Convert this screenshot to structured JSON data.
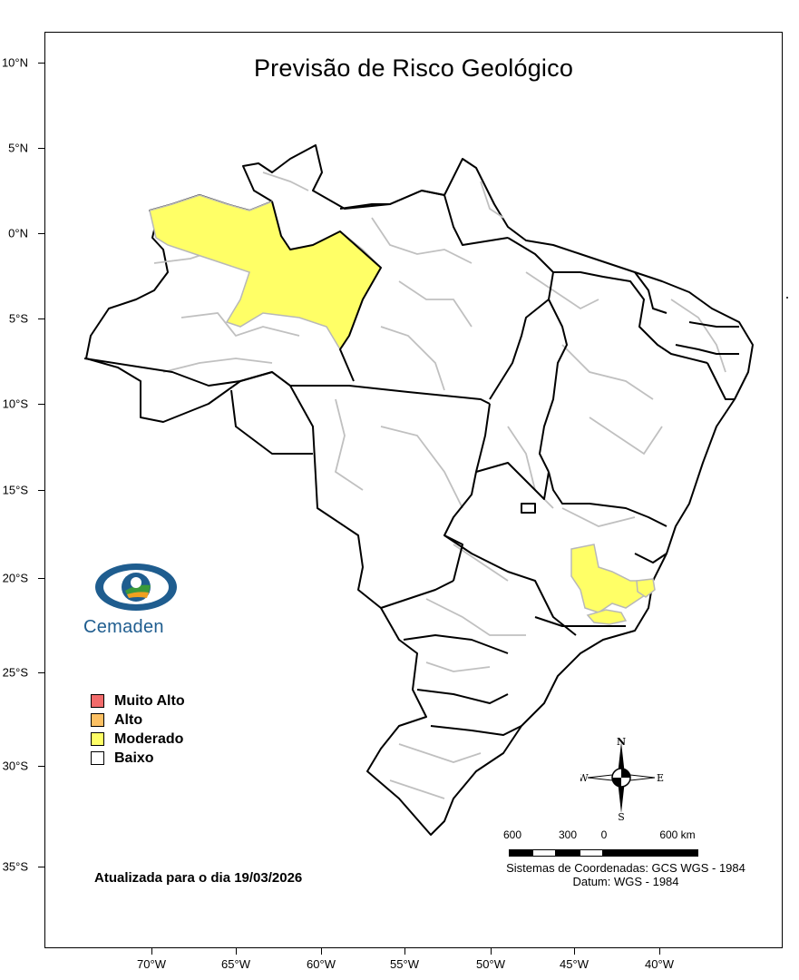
{
  "title": "Previsão de Risco Geológico",
  "latitude_labels": [
    "10°N",
    "5°N",
    "0°N",
    "5°S",
    "10°S",
    "15°S",
    "20°S",
    "25°S",
    "30°S",
    "35°S"
  ],
  "longitude_labels": [
    "70°W",
    "65°W",
    "60°W",
    "55°W",
    "50°W",
    "45°W",
    "40°W"
  ],
  "legend": [
    {
      "label": "Muito Alto",
      "color": "#f26b6b"
    },
    {
      "label": "Alto",
      "color": "#fcc063"
    },
    {
      "label": "Moderado",
      "color": "#ffff66"
    },
    {
      "label": "Baixo",
      "color": "#ffffff"
    }
  ],
  "logo_text": "Cemaden",
  "updated_text": "Atualizada para o dia 19/03/2026",
  "compass": {
    "n": "N",
    "s": "S",
    "e": "E",
    "w": "W"
  },
  "scale": {
    "labels": [
      "600",
      "300",
      "0",
      "600 km"
    ]
  },
  "crs_line1": "Sistemas de Coordenadas: GCS WGS - 1984",
  "crs_line2": "Datum: WGS - 1984",
  "colors": {
    "moderado": "#ffff66",
    "border_state": "#000000",
    "border_region": "#b8b8b8"
  }
}
